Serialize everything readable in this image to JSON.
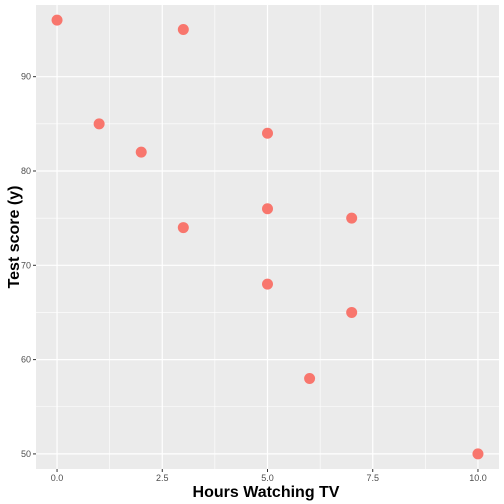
{
  "chart_data": {
    "type": "scatter",
    "xlabel": "Hours Watching TV",
    "ylabel": "Test score (y)",
    "xlim": [
      -0.5,
      10.5
    ],
    "ylim": [
      48.4,
      97.6
    ],
    "x_ticks": [
      0.0,
      2.5,
      5.0,
      7.5,
      10.0
    ],
    "x_tick_labels": [
      "0.0",
      "2.5",
      "5.0",
      "7.5",
      "10.0"
    ],
    "y_ticks": [
      50,
      60,
      70,
      80,
      90
    ],
    "y_tick_labels": [
      "50",
      "60",
      "70",
      "80",
      "90"
    ],
    "grid": true,
    "point_color": "#F8766D",
    "panel_color": "#EBEBEB",
    "series": [
      {
        "x": [
          0,
          1,
          2,
          3,
          3,
          5,
          5,
          5,
          6,
          7,
          7,
          10
        ],
        "y": [
          96,
          85,
          82,
          74,
          95,
          84,
          76,
          68,
          58,
          75,
          65,
          50
        ]
      }
    ]
  }
}
